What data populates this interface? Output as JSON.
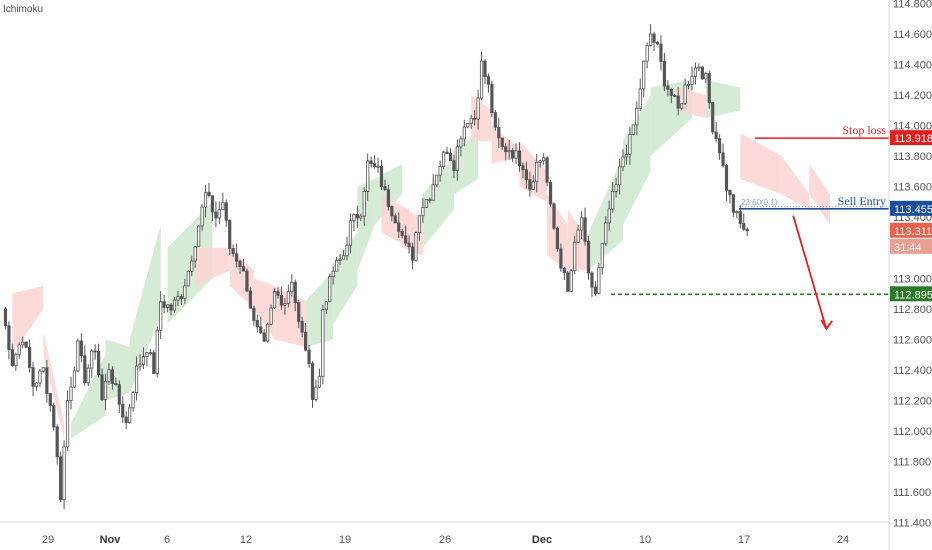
{
  "indicator": {
    "name": "Ichimoku"
  },
  "colors": {
    "candle": "#555555",
    "cloud_bull": "#cfe8cf",
    "cloud_bear": "#fbd3d3",
    "stop_loss": "#e0201e",
    "sell_entry": "#1a4f9c",
    "target": "#2a7a26",
    "last_price": "#e8624f",
    "countdown": "#e8a092",
    "arrow": "#e0201e"
  },
  "annotations": {
    "stop_loss_label": "Stop loss",
    "sell_entry_label": "Sell Entry",
    "fib_label": "23.60(0.1)"
  },
  "chart_data": {
    "type": "candlestick",
    "title": "",
    "indicator": "Ichimoku",
    "xlabel": "",
    "ylabel": "",
    "ylim": [
      111.4,
      114.8
    ],
    "grid": false,
    "y_ticks": [
      "114.800",
      "114.600",
      "114.400",
      "114.200",
      "114.000",
      "113.800",
      "113.600",
      "113.400",
      "113.200",
      "113.000",
      "112.800",
      "112.600",
      "112.400",
      "112.200",
      "112.000",
      "111.800",
      "111.600",
      "111.400"
    ],
    "x_ticks": [
      {
        "label": "29",
        "bold": false
      },
      {
        "label": "Nov",
        "bold": true
      },
      {
        "label": "6",
        "bold": false
      },
      {
        "label": "12",
        "bold": false
      },
      {
        "label": "19",
        "bold": false
      },
      {
        "label": "26",
        "bold": false
      },
      {
        "label": "Dec",
        "bold": true
      },
      {
        "label": "10",
        "bold": false
      },
      {
        "label": "17",
        "bold": false
      },
      {
        "label": "24",
        "bold": false
      }
    ],
    "levels": {
      "stop_loss": 113.918,
      "sell_entry": 113.455,
      "take_profit": 112.895,
      "last_price": 113.311,
      "countdown": "31:44"
    },
    "level_labels": {
      "stop_loss": "113.918",
      "sell_entry": "113.455",
      "take_profit": "112.895",
      "last_price": "113.311"
    },
    "price_path": [
      [
        0,
        112.8
      ],
      [
        3,
        112.45
      ],
      [
        6,
        112.62
      ],
      [
        9,
        112.3
      ],
      [
        12,
        112.4
      ],
      [
        15,
        112.05
      ],
      [
        17,
        111.58
      ],
      [
        19,
        112.2
      ],
      [
        22,
        112.55
      ],
      [
        24,
        112.35
      ],
      [
        27,
        112.55
      ],
      [
        29,
        112.2
      ],
      [
        31,
        112.42
      ],
      [
        34,
        112.18
      ],
      [
        36,
        112.05
      ],
      [
        39,
        112.4
      ],
      [
        42,
        112.55
      ],
      [
        44,
        112.4
      ],
      [
        46,
        112.85
      ],
      [
        49,
        112.8
      ],
      [
        52,
        112.9
      ],
      [
        54,
        113.05
      ],
      [
        57,
        113.35
      ],
      [
        59,
        113.55
      ],
      [
        60,
        113.5
      ],
      [
        62,
        113.4
      ],
      [
        64,
        113.5
      ],
      [
        66,
        113.2
      ],
      [
        69,
        113.1
      ],
      [
        71,
        112.95
      ],
      [
        73,
        112.7
      ],
      [
        76,
        112.55
      ],
      [
        79,
        112.9
      ],
      [
        82,
        112.85
      ],
      [
        84,
        113.0
      ],
      [
        86,
        112.7
      ],
      [
        88,
        112.55
      ],
      [
        90,
        112.25
      ],
      [
        92,
        112.35
      ],
      [
        93,
        112.8
      ],
      [
        96,
        113.05
      ],
      [
        99,
        113.15
      ],
      [
        101,
        113.35
      ],
      [
        104,
        113.45
      ],
      [
        106,
        113.75
      ],
      [
        109,
        113.7
      ],
      [
        111,
        113.55
      ],
      [
        113,
        113.45
      ],
      [
        115,
        113.35
      ],
      [
        117,
        113.2
      ],
      [
        119,
        113.15
      ],
      [
        121,
        113.45
      ],
      [
        124,
        113.55
      ],
      [
        126,
        113.7
      ],
      [
        129,
        113.85
      ],
      [
        131,
        113.75
      ],
      [
        133,
        113.95
      ],
      [
        135,
        114.05
      ],
      [
        137,
        114.05
      ],
      [
        139,
        114.4
      ],
      [
        141,
        114.25
      ],
      [
        143,
        113.95
      ],
      [
        145,
        113.85
      ],
      [
        147,
        113.85
      ],
      [
        149,
        113.8
      ],
      [
        151,
        113.75
      ],
      [
        153,
        113.6
      ],
      [
        155,
        113.75
      ],
      [
        157,
        113.8
      ],
      [
        159,
        113.45
      ],
      [
        161,
        113.2
      ],
      [
        163,
        113.0
      ],
      [
        164,
        112.9
      ],
      [
        166,
        113.2
      ],
      [
        168,
        113.4
      ],
      [
        170,
        113.0
      ],
      [
        172,
        112.9
      ],
      [
        174,
        113.2
      ],
      [
        176,
        113.45
      ],
      [
        178,
        113.6
      ],
      [
        180,
        113.8
      ],
      [
        182,
        113.9
      ],
      [
        184,
        114.1
      ],
      [
        186,
        114.4
      ],
      [
        188,
        114.6
      ],
      [
        190,
        114.5
      ],
      [
        192,
        114.3
      ],
      [
        194,
        114.2
      ],
      [
        196,
        114.1
      ],
      [
        198,
        114.25
      ],
      [
        200,
        114.35
      ],
      [
        202,
        114.4
      ],
      [
        204,
        114.3
      ],
      [
        206,
        114.0
      ],
      [
        208,
        113.85
      ],
      [
        210,
        113.6
      ],
      [
        212,
        113.45
      ],
      [
        214,
        113.35
      ],
      [
        216,
        113.311
      ]
    ],
    "cloud_segments": [
      {
        "sentiment": "bearish",
        "x": [
          3,
          12
        ],
        "upper": [
          112.9,
          112.95
        ],
        "lower": [
          112.5,
          112.8
        ]
      },
      {
        "sentiment": "bearish",
        "x": [
          12,
          18
        ],
        "upper": [
          112.65,
          112.05
        ],
        "lower": [
          112.5,
          111.95
        ]
      },
      {
        "sentiment": "bullish",
        "x": [
          20,
          30
        ],
        "upper": [
          112.05,
          112.5
        ],
        "lower": [
          111.95,
          112.1
        ]
      },
      {
        "sentiment": "bullish",
        "x": [
          30,
          37
        ],
        "upper": [
          112.6,
          112.55
        ],
        "lower": [
          112.2,
          112.25
        ]
      },
      {
        "sentiment": "bullish",
        "x": [
          37,
          46
        ],
        "upper": [
          112.6,
          113.35
        ],
        "lower": [
          112.25,
          112.75
        ]
      },
      {
        "sentiment": "bullish",
        "x": [
          48,
          61
        ],
        "upper": [
          113.2,
          113.5
        ],
        "lower": [
          112.7,
          113.0
        ]
      },
      {
        "sentiment": "bearish",
        "x": [
          56,
          66
        ],
        "upper": [
          113.2,
          113.2
        ],
        "lower": [
          112.95,
          113.05
        ]
      },
      {
        "sentiment": "bearish",
        "x": [
          66,
          73
        ],
        "upper": [
          113.2,
          113.05
        ],
        "lower": [
          112.95,
          112.8
        ]
      },
      {
        "sentiment": "bearish",
        "x": [
          73,
          79
        ],
        "upper": [
          113.0,
          112.95
        ],
        "lower": [
          112.8,
          112.6
        ]
      },
      {
        "sentiment": "bearish",
        "x": [
          79,
          88
        ],
        "upper": [
          112.95,
          112.85
        ],
        "lower": [
          112.6,
          112.55
        ]
      },
      {
        "sentiment": "bullish",
        "x": [
          88,
          96
        ],
        "upper": [
          112.85,
          113.05
        ],
        "lower": [
          112.55,
          112.6
        ]
      },
      {
        "sentiment": "bullish",
        "x": [
          96,
          103
        ],
        "upper": [
          113.1,
          113.3
        ],
        "lower": [
          112.7,
          112.95
        ]
      },
      {
        "sentiment": "bullish",
        "x": [
          103,
          108
        ],
        "upper": [
          113.6,
          113.65
        ],
        "lower": [
          113.05,
          113.35
        ]
      },
      {
        "sentiment": "bullish",
        "x": [
          108,
          116
        ],
        "upper": [
          113.65,
          113.75
        ],
        "lower": [
          113.35,
          113.55
        ]
      },
      {
        "sentiment": "bearish",
        "x": [
          110,
          118
        ],
        "upper": [
          113.55,
          113.45
        ],
        "lower": [
          113.3,
          113.2
        ]
      },
      {
        "sentiment": "bearish",
        "x": [
          116,
          122
        ],
        "upper": [
          113.45,
          113.4
        ],
        "lower": [
          113.2,
          113.15
        ]
      },
      {
        "sentiment": "bullish",
        "x": [
          122,
          131
        ],
        "upper": [
          113.55,
          113.8
        ],
        "lower": [
          113.2,
          113.45
        ]
      },
      {
        "sentiment": "bullish",
        "x": [
          131,
          138
        ],
        "upper": [
          113.85,
          113.95
        ],
        "lower": [
          113.55,
          113.65
        ]
      },
      {
        "sentiment": "bearish",
        "x": [
          136,
          142
        ],
        "upper": [
          114.2,
          114.1
        ],
        "lower": [
          113.9,
          113.9
        ]
      },
      {
        "sentiment": "bearish",
        "x": [
          142,
          150
        ],
        "upper": [
          114.0,
          113.85
        ],
        "lower": [
          113.75,
          113.8
        ]
      },
      {
        "sentiment": "bearish",
        "x": [
          150,
          158
        ],
        "upper": [
          113.9,
          113.7
        ],
        "lower": [
          113.6,
          113.5
        ]
      },
      {
        "sentiment": "bearish",
        "x": [
          158,
          164
        ],
        "upper": [
          113.55,
          113.35
        ],
        "lower": [
          113.15,
          113.05
        ]
      },
      {
        "sentiment": "bearish",
        "x": [
          164,
          170
        ],
        "upper": [
          113.45,
          113.25
        ],
        "lower": [
          113.05,
          113.05
        ]
      },
      {
        "sentiment": "bullish",
        "x": [
          170,
          180
        ],
        "upper": [
          113.3,
          113.8
        ],
        "lower": [
          113.05,
          113.25
        ]
      },
      {
        "sentiment": "bullish",
        "x": [
          180,
          188
        ],
        "upper": [
          113.9,
          114.2
        ],
        "lower": [
          113.35,
          113.7
        ]
      },
      {
        "sentiment": "bullish",
        "x": [
          188,
          200
        ],
        "upper": [
          114.25,
          114.3
        ],
        "lower": [
          113.8,
          114.05
        ]
      },
      {
        "sentiment": "bearish",
        "x": [
          196,
          204
        ],
        "upper": [
          114.25,
          114.2
        ],
        "lower": [
          114.1,
          114.05
        ]
      },
      {
        "sentiment": "bullish",
        "x": [
          204,
          214
        ],
        "upper": [
          114.3,
          114.25
        ],
        "lower": [
          114.05,
          114.1
        ]
      },
      {
        "sentiment": "bearish",
        "x": [
          214,
          226
        ],
        "upper": [
          113.95,
          113.8
        ],
        "lower": [
          113.65,
          113.55
        ]
      },
      {
        "sentiment": "bearish",
        "x": [
          226,
          234
        ],
        "upper": [
          113.8,
          113.55
        ],
        "lower": [
          113.55,
          113.45
        ]
      },
      {
        "sentiment": "bearish",
        "x": [
          234,
          240
        ],
        "upper": [
          113.75,
          113.55
        ],
        "lower": [
          113.55,
          113.35
        ]
      }
    ],
    "projection": {
      "from": [
        216,
        113.45
      ],
      "to": [
        234,
        112.8
      ]
    }
  }
}
